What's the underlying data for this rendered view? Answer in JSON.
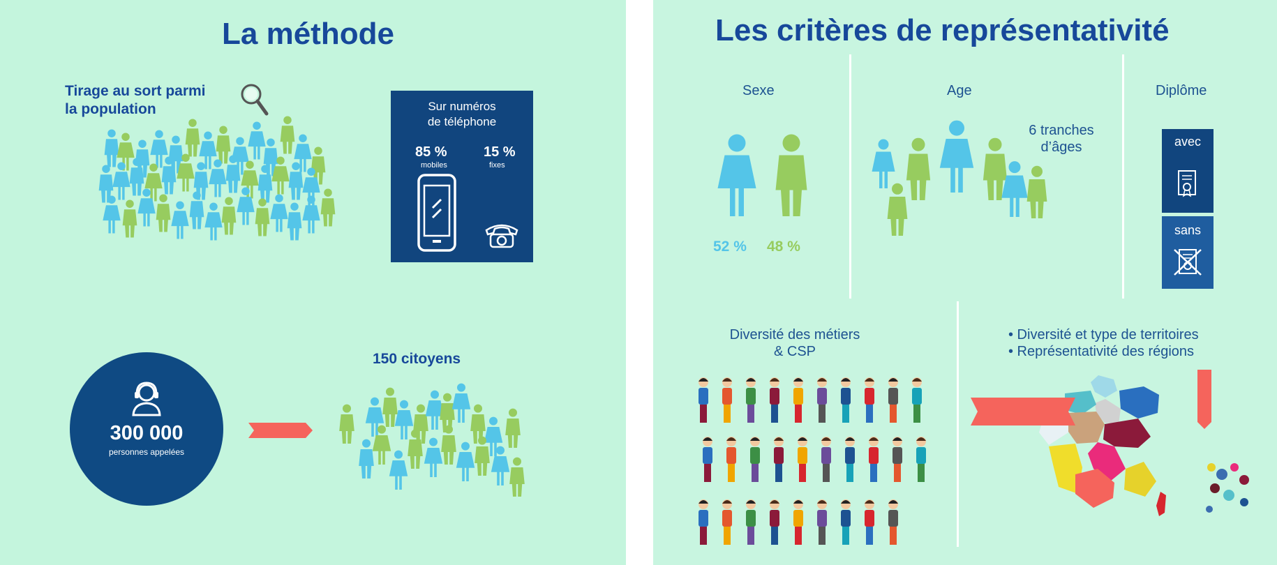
{
  "left": {
    "title": "La méthode",
    "draw_label_line1": "Tirage au sort parmi",
    "draw_label_line2": "la population",
    "phone_box": {
      "title_line1": "Sur numéros",
      "title_line2": "de téléphone",
      "mobile_pct": "85 %",
      "mobile_label": "mobiles",
      "fixed_pct": "15 %",
      "fixed_label": "fixes"
    },
    "circle": {
      "count": "300 000",
      "label": "personnes appelées"
    },
    "citizens_label": "150 citoyens"
  },
  "right": {
    "title": "Les critères de représentativité",
    "sex": {
      "heading": "Sexe",
      "female_pct": "52 %",
      "male_pct": "48 %"
    },
    "age": {
      "heading": "Age",
      "note_line1": "6 tranches",
      "note_line2": "d’âges"
    },
    "diploma": {
      "heading": "Diplôme",
      "with_label": "avec",
      "without_label": "sans"
    },
    "jobs": {
      "heading_line1": "Diversité des métiers",
      "heading_line2": "& CSP"
    },
    "territories": {
      "bullet1": "• Diversité et type de territoires",
      "bullet2": "• Représentativité des régions"
    }
  },
  "colors": {
    "background": "#c4f5dd",
    "title_blue": "#17489a",
    "navy_box": "#11457e",
    "figure_blue": "#54c5e8",
    "figure_green": "#97cc5f",
    "arrow_red": "#f5645c"
  }
}
